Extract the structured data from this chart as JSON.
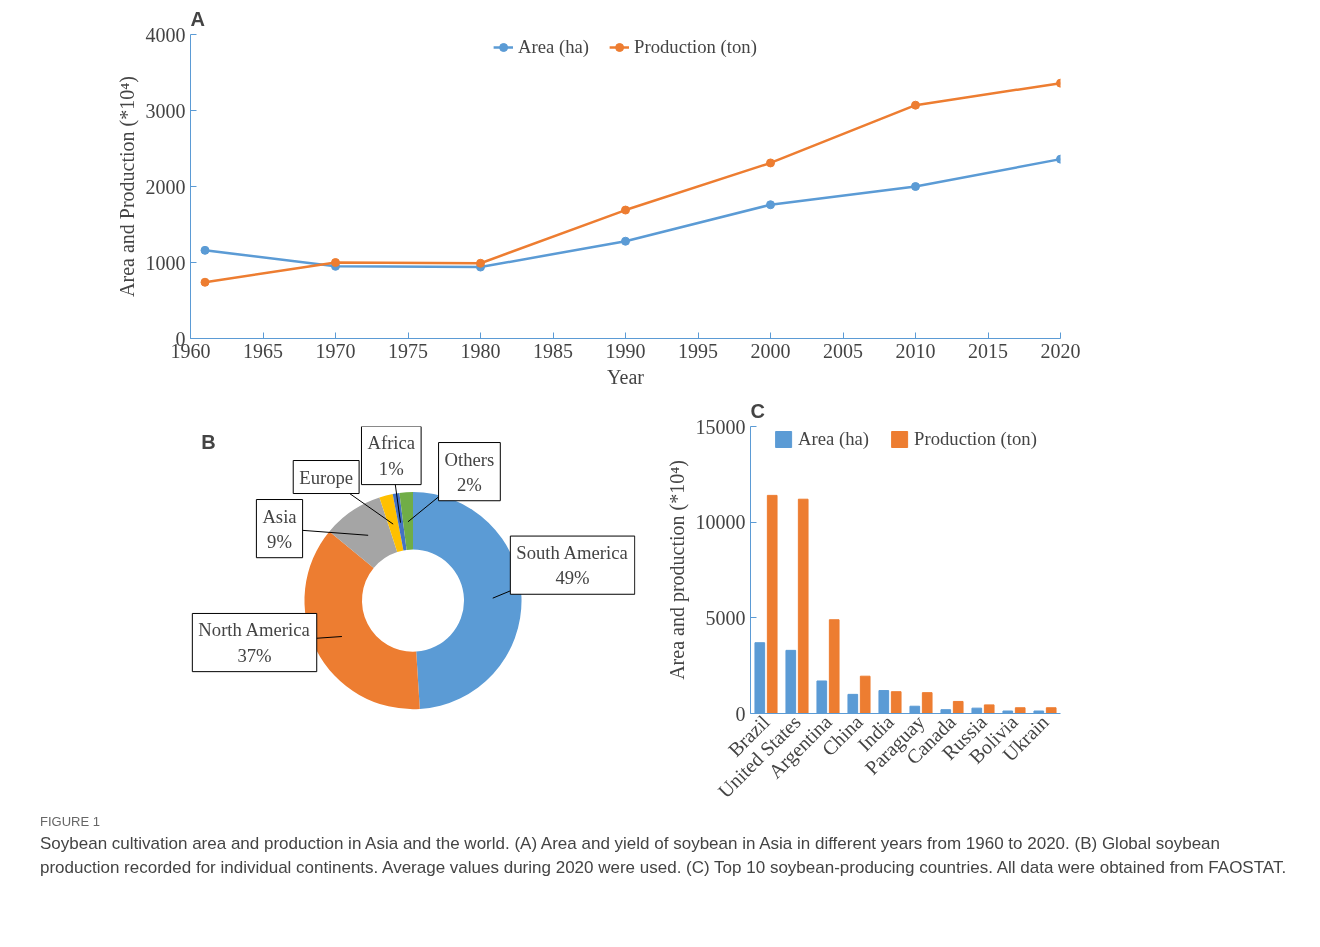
{
  "chart_data": [
    {
      "type": "line",
      "title": "A",
      "xlabel": "Year",
      "ylabel": "Area and Production (*10⁴)",
      "x": [
        1961,
        1970,
        1980,
        1990,
        2000,
        2010,
        2020
      ],
      "xlim": [
        1960,
        2020
      ],
      "xticks": [
        1960,
        1965,
        1970,
        1975,
        1980,
        1985,
        1990,
        1995,
        2000,
        2005,
        2010,
        2015,
        2020
      ],
      "ylim": [
        0,
        4000
      ],
      "yticks": [
        0,
        1000,
        2000,
        3000,
        4000
      ],
      "marker": "circle",
      "legend": "top",
      "series": [
        {
          "name": "Area (ha)",
          "color": "#5b9bd5",
          "values": [
            1160,
            950,
            940,
            1280,
            1760,
            2000,
            2360
          ]
        },
        {
          "name": "Production (ton)",
          "color": "#ed7d31",
          "values": [
            740,
            1000,
            990,
            1690,
            2310,
            3070,
            3360
          ]
        }
      ]
    },
    {
      "type": "donut",
      "title": "B",
      "categories": [
        "South America",
        "North America",
        "Asia",
        "Europe",
        "Africa",
        "Others"
      ],
      "values": [
        49,
        37,
        9,
        2,
        1,
        2
      ],
      "value_labels": [
        "49%",
        "37%",
        "9%",
        null,
        "1%",
        "2%"
      ],
      "colors": [
        "#5b9bd5",
        "#ed7d31",
        "#a5a5a5",
        "#ffc000",
        "#4472c4",
        "#70ad47"
      ]
    },
    {
      "type": "bar",
      "title": "C",
      "ylabel": "Area and production (*10⁴)",
      "categories": [
        "Brazil",
        "United States",
        "Argentina",
        "China",
        "India",
        "Paraguay",
        "Canada",
        "Russia",
        "Bolivia",
        "Ukrain"
      ],
      "ylim": [
        0,
        15000
      ],
      "yticks": [
        0,
        5000,
        10000,
        15000
      ],
      "legend": "top",
      "series": [
        {
          "name": "Area (ha)",
          "color": "#5b9bd5",
          "values": [
            3700,
            3300,
            1700,
            1000,
            1200,
            380,
            200,
            280,
            130,
            130
          ]
        },
        {
          "name": "Production (ton)",
          "color": "#ed7d31",
          "values": [
            11400,
            11200,
            4900,
            1950,
            1140,
            1090,
            630,
            450,
            300,
            300
          ]
        }
      ],
      "annotations": [
        "FIGURE 1",
        "Soybean cultivation area and production in Asia and the world. (A) Area and yield of soybean in Asia in different years from 1960 to 2020. (B) Global soybean production recorded for individual continents. Average values during 2020 were used. (C) Top 10 soybean-producing countries. All data were obtained from FAOSTAT."
      ]
    }
  ]
}
